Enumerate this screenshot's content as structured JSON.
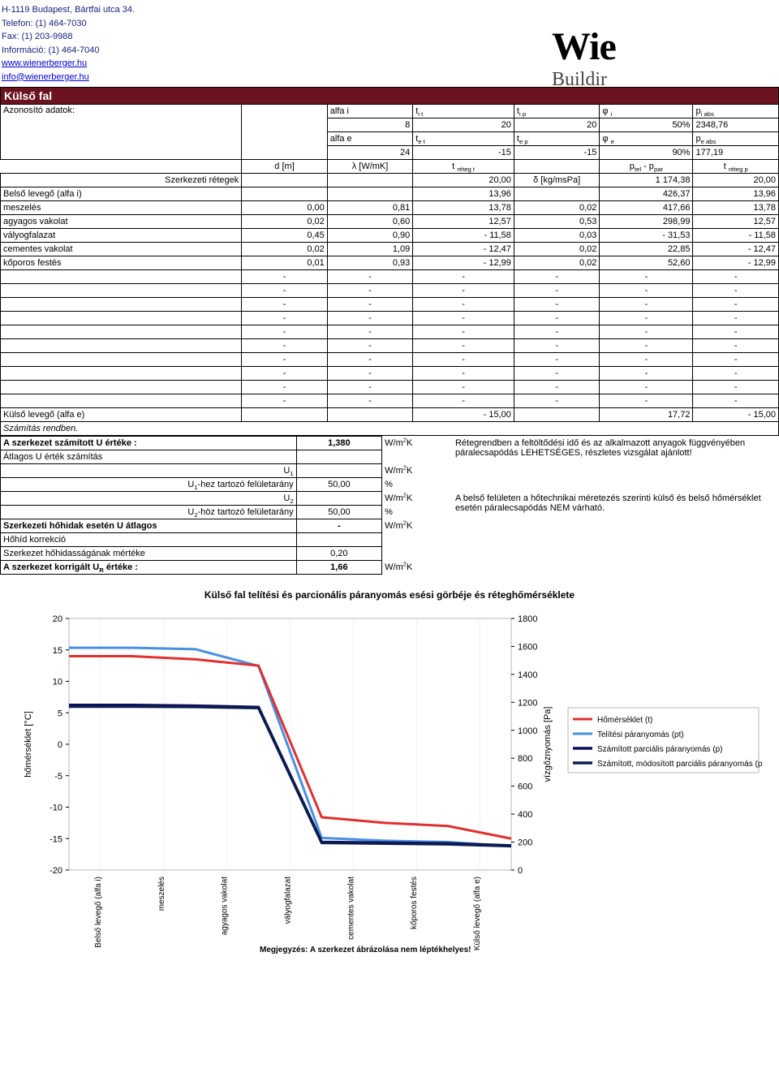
{
  "header": {
    "address": "H-1119 Budapest, Bártfai utca 34.",
    "phone": "Telefon: (1) 464-7030",
    "fax": "Fax: (1) 203-9988",
    "info": "Információ: (1) 464-7040",
    "url": "www.wienerberger.hu",
    "email": "info@wienerberger.hu",
    "logo1": "Wie",
    "logo2": "Buildir"
  },
  "banner": "Külső fal",
  "azonosito_label": "Azonosító adatok:",
  "param_rows": [
    {
      "h1": "alfa i",
      "h2": "t<sub>i t</sub>",
      "h3": "t<sub>i p</sub>",
      "h4": "φ <sub>i</sub>",
      "h5": "p<sub>i abs</sub>"
    },
    {
      "v1": "8",
      "v2": "20",
      "v3": "20",
      "v4": "50%",
      "v5": "2348,76"
    },
    {
      "h1": "alfa e",
      "h2": "t<sub>e t</sub>",
      "h3": "t<sub>e p</sub>",
      "h4": "φ <sub>e</sub>",
      "h5": "p<sub>e abs</sub>"
    },
    {
      "v1": "24",
      "v2": "-15",
      "v3": "-15",
      "v4": "90%",
      "v5": "177,19"
    }
  ],
  "d_row": {
    "c1": "d [m]",
    "c2": "λ [W/mK]",
    "c3": "t <sub>réteg t</sub>",
    "c4": "",
    "c5": "p<sub>tel</sub> - p<sub>par</sub>",
    "c6": "t <sub>réteg p</sub>"
  },
  "szerk_row": {
    "label": "Szerkezeti rétegek",
    "v1": "",
    "v2": "",
    "v3": "20,00",
    "v4": "δ [kg/msPa]",
    "v5": "1 174,38",
    "v6": "20,00"
  },
  "layers": [
    {
      "name": "Belső levegő (alfa i)",
      "d": "",
      "l": "",
      "t": "13,96",
      "dk": "",
      "p": "426,37",
      "tr": "13,96"
    },
    {
      "name": "meszelés",
      "d": "0,00",
      "l": "0,81",
      "t": "13,78",
      "dk": "0,02",
      "p": "417,66",
      "tr": "13,78"
    },
    {
      "name": "agyagos vakolat",
      "d": "0,02",
      "l": "0,60",
      "t": "12,57",
      "dk": "0,53",
      "p": "298,99",
      "tr": "12,57"
    },
    {
      "name": "vályogfalazat",
      "d": "0,45",
      "l": "0,90",
      "t": "-   11,58",
      "dk": "0,03",
      "p": "-       31,53",
      "tr": "-     11,58"
    },
    {
      "name": "cementes vakolat",
      "d": "0,02",
      "l": "1,09",
      "t": "-   12,47",
      "dk": "0,02",
      "p": "22,85",
      "tr": "-     12,47"
    },
    {
      "name": "kőporos festés",
      "d": "0,01",
      "l": "0,93",
      "t": "-   12,99",
      "dk": "0,02",
      "p": "52,60",
      "tr": "-     12,99"
    },
    {
      "name": "",
      "d": "-",
      "l": "-",
      "t": "-",
      "dk": "-",
      "p": "-",
      "tr": "-"
    },
    {
      "name": "",
      "d": "-",
      "l": "-",
      "t": "-",
      "dk": "-",
      "p": "-",
      "tr": "-"
    },
    {
      "name": "",
      "d": "-",
      "l": "-",
      "t": "-",
      "dk": "-",
      "p": "-",
      "tr": "-"
    },
    {
      "name": "",
      "d": "-",
      "l": "-",
      "t": "-",
      "dk": "-",
      "p": "-",
      "tr": "-"
    },
    {
      "name": "",
      "d": "-",
      "l": "-",
      "t": "-",
      "dk": "-",
      "p": "-",
      "tr": "-"
    },
    {
      "name": "",
      "d": "-",
      "l": "-",
      "t": "-",
      "dk": "-",
      "p": "-",
      "tr": "-"
    },
    {
      "name": "",
      "d": "-",
      "l": "-",
      "t": "-",
      "dk": "-",
      "p": "-",
      "tr": "-"
    },
    {
      "name": "",
      "d": "-",
      "l": "-",
      "t": "-",
      "dk": "-",
      "p": "-",
      "tr": "-"
    },
    {
      "name": "",
      "d": "-",
      "l": "-",
      "t": "-",
      "dk": "-",
      "p": "-",
      "tr": "-"
    },
    {
      "name": "",
      "d": "-",
      "l": "-",
      "t": "-",
      "dk": "-",
      "p": "-",
      "tr": "-"
    }
  ],
  "kulso_row": {
    "name": "Külső levegő (alfa e)",
    "d": "",
    "l": "",
    "t": "-   15,00",
    "dk": "",
    "p": "17,72",
    "tr": "-     15,00"
  },
  "szamitas_row": "Számítás rendben.",
  "calc": [
    {
      "label": "A szerkezet számított U értéke :",
      "val": "1,380",
      "unit": "W/m<sup>2</sup>K",
      "bold": true
    },
    {
      "label": "Átlagos U érték számítás",
      "val": "",
      "unit": ""
    },
    {
      "label": "U<sub>1</sub>",
      "val": "",
      "unit": "W/m<sup>2</sup>K",
      "right": true
    },
    {
      "label": "U<sub>1</sub>-hez tartozó felületarány",
      "val": "50,00",
      "unit": "%",
      "right": true
    },
    {
      "label": "U<sub>2</sub>",
      "val": "",
      "unit": "W/m<sup>2</sup>K",
      "right": true
    },
    {
      "label": "U<sub>2</sub>-höz tartozó felületarány",
      "val": "50,00",
      "unit": "%",
      "right": true
    },
    {
      "label": "Szerkezeti hőhidak esetén U átlagos",
      "val": "-",
      "unit": "W/m<sup>2</sup>K",
      "bold": true
    },
    {
      "label": "Hőhíd korrekció",
      "val": "",
      "unit": ""
    },
    {
      "label": "Szerkezet hőhidasságának mértéke",
      "val": "0,20",
      "unit": ""
    },
    {
      "label": "A szerkezet korrigált U<sub>R</sub> értéke :",
      "val": "1,66",
      "unit": "W/m<sup>2</sup>K",
      "bold": true
    }
  ],
  "sidenote1": "Rétegrendben a feltöltődési idő és az alkalmazott anyagok függvényében páralecsapódás LEHETSÉGES, részletes vizsgálat ajánlott!",
  "sidenote2": "A belső felületen a hőtechnikai méretezés szerinti külső és belső hőmérséklet esetén páralecsapódás NEM várható.",
  "chart": {
    "title": "Külső fal telítési és parcionális páranyomás esési görbéje és réteghőmérséklete",
    "y1_label": "hőmérséklet [°C]",
    "y2_label": "vízgőznyomás [Pa]",
    "y1_ticks": [
      20,
      15,
      10,
      5,
      0,
      -5,
      -10,
      -15,
      -20
    ],
    "y2_ticks": [
      1800,
      1600,
      1400,
      1200,
      1000,
      800,
      600,
      400,
      200,
      0
    ],
    "x_labels": [
      "Belső levegő (alfa i)",
      "meszelés",
      "agyagos vakolat",
      "vályogfalazat",
      "cementes vakolat",
      "kőporos festés",
      "Külső levegő (alfa e)"
    ],
    "series": {
      "t": {
        "label": "Hőmérséklet (t)",
        "color": "#e03030",
        "width": 3,
        "pts": [
          [
            0,
            14
          ],
          [
            1,
            14
          ],
          [
            2,
            13.5
          ],
          [
            3,
            12.5
          ],
          [
            4,
            -11.6
          ],
          [
            5,
            -12.5
          ],
          [
            6,
            -13
          ],
          [
            7,
            -15
          ]
        ]
      },
      "pt": {
        "label": "Telítési páranyomás (pt)",
        "color": "#4a90e2",
        "width": 3,
        "pts": [
          [
            0,
            1590
          ],
          [
            1,
            1590
          ],
          [
            2,
            1580
          ],
          [
            3,
            1460
          ],
          [
            4,
            230
          ],
          [
            5,
            210
          ],
          [
            6,
            200
          ],
          [
            7,
            170
          ]
        ]
      },
      "p": {
        "label": "Számított parciális páranyomás (p)",
        "color": "#0a0a60",
        "width": 3.5,
        "pts": [
          [
            0,
            1180
          ],
          [
            1,
            1180
          ],
          [
            2,
            1175
          ],
          [
            3,
            1165
          ],
          [
            4,
            200
          ],
          [
            5,
            195
          ],
          [
            6,
            190
          ],
          [
            7,
            175
          ]
        ]
      },
      "pmod": {
        "label": "Számított, módosított parciális páranyomás (pmod)",
        "color": "#0b1d4d",
        "width": 3.5,
        "pts": [
          [
            0,
            1170
          ],
          [
            1,
            1170
          ],
          [
            2,
            1168
          ],
          [
            3,
            1160
          ],
          [
            4,
            195
          ],
          [
            5,
            190
          ],
          [
            6,
            185
          ],
          [
            7,
            172
          ]
        ]
      }
    },
    "note": "Megjegyzés: A szerkezet ábrázolása nem léptékhelyes!"
  }
}
